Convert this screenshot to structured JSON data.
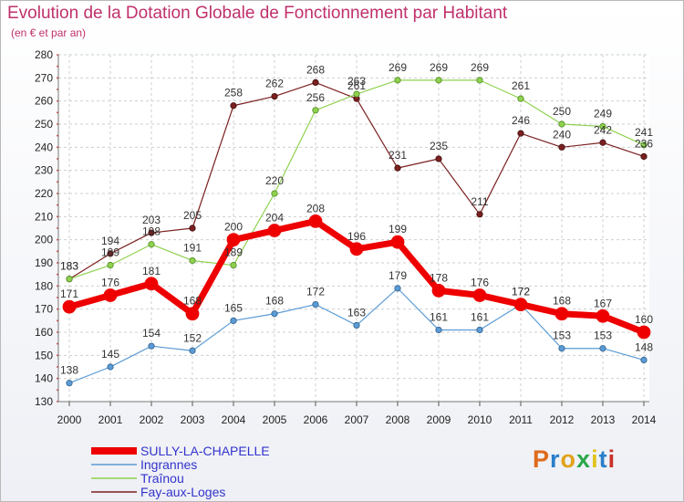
{
  "header": {
    "title": "Evolution de la Dotation Globale de Fonctionnement par Habitant",
    "subtitle": "(en € et par an)"
  },
  "logo": {
    "text": "Proxiti",
    "colors": [
      "#e06a1b",
      "#2a7fc9",
      "#e0a31b",
      "#2aa84a",
      "#e0c21b",
      "#2a7fc9",
      "#c9312a"
    ]
  },
  "chart_data": {
    "type": "line",
    "title": "Evolution de la Dotation Globale de Fonctionnement par Habitant",
    "subtitle": "(en € et par an)",
    "xlabel": "",
    "ylabel": "",
    "x": [
      "2000",
      "2001",
      "2002",
      "2003",
      "2004",
      "2005",
      "2006",
      "2007",
      "2008",
      "2009",
      "2010",
      "2011",
      "2012",
      "2013",
      "2014"
    ],
    "ylim": [
      130,
      280
    ],
    "yticks": [
      130,
      140,
      150,
      160,
      170,
      180,
      190,
      200,
      210,
      220,
      230,
      240,
      250,
      260,
      270,
      280
    ],
    "grid": true,
    "legend": "bottom-left",
    "series": [
      {
        "name": "SULLY-LA-CHAPELLE",
        "color": "#ee0000",
        "values": [
          171,
          176,
          181,
          168,
          200,
          204,
          208,
          196,
          199,
          178,
          176,
          172,
          168,
          167,
          160
        ]
      },
      {
        "name": "Ingrannes",
        "color": "#5b9bd5",
        "values": [
          138,
          145,
          154,
          152,
          165,
          168,
          172,
          163,
          179,
          161,
          161,
          172,
          153,
          153,
          148
        ]
      },
      {
        "name": "Traînou",
        "color": "#8fd14f",
        "values": [
          183,
          189,
          198,
          191,
          189,
          220,
          256,
          263,
          269,
          269,
          269,
          261,
          250,
          249,
          241
        ]
      },
      {
        "name": "Fay-aux-Loges",
        "color": "#7b2020",
        "values": [
          183,
          194,
          203,
          205,
          258,
          262,
          268,
          261,
          231,
          235,
          211,
          246,
          240,
          242,
          236
        ]
      }
    ]
  }
}
